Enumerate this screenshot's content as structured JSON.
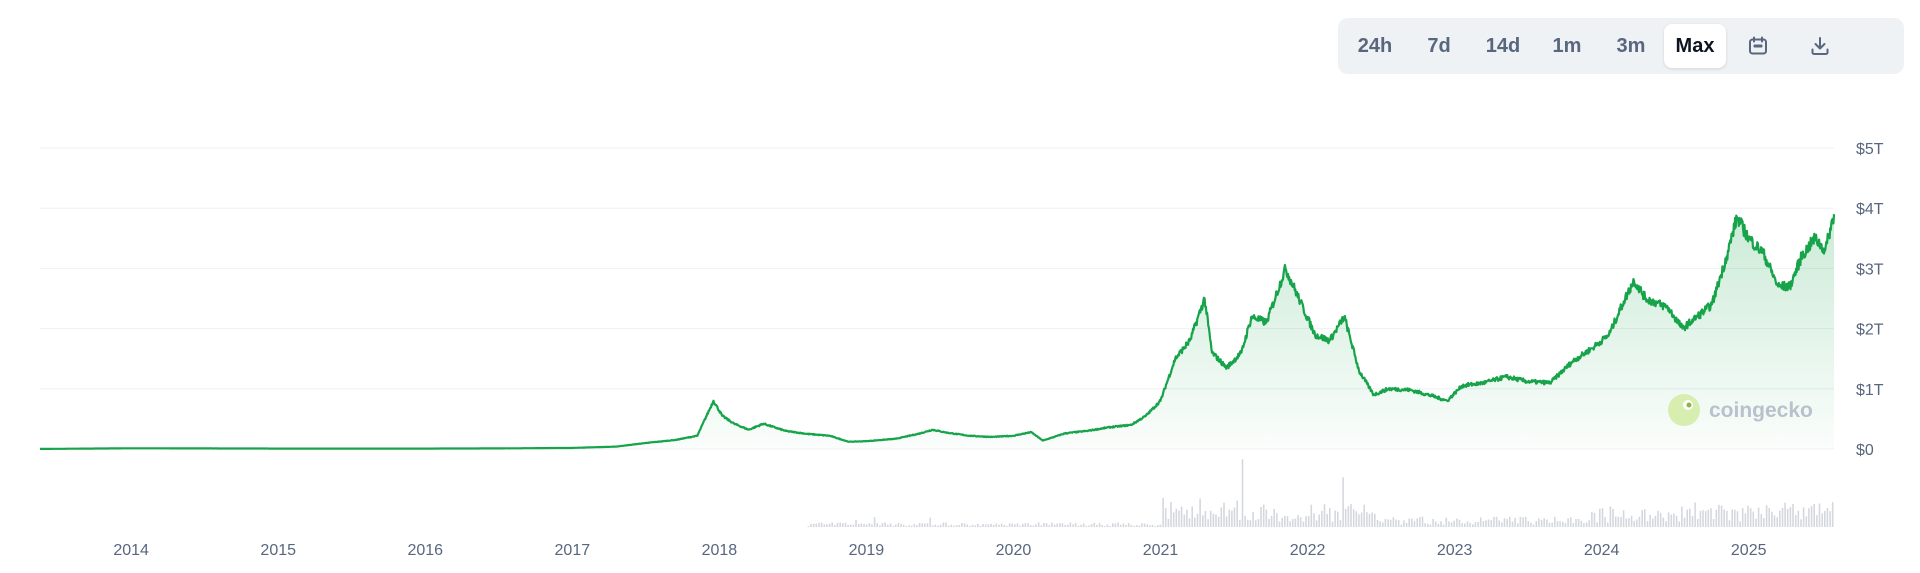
{
  "toolbar": {
    "ranges": [
      "24h",
      "7d",
      "14d",
      "1m",
      "3m",
      "Max"
    ],
    "active": "Max",
    "icons": [
      "calendar-icon",
      "download-icon"
    ]
  },
  "watermark": {
    "text": "coingecko",
    "icon": "gecko-logo-icon"
  },
  "colors": {
    "line": "#16a34a",
    "fill_top": "#16a34a",
    "grid": "#eef0f3",
    "volume": "#d4d8de",
    "text": "#58667e"
  },
  "chart_data": {
    "type": "area",
    "title": "",
    "xlabel": "",
    "ylabel": "",
    "ylim": [
      0,
      5
    ],
    "y_unit": "trillion USD",
    "y_ticks": [
      0,
      1,
      2,
      3,
      4,
      5
    ],
    "y_tick_labels": [
      "$0",
      "$1T",
      "$2T",
      "$3T",
      "$4T",
      "$5T"
    ],
    "x_range": [
      2013.38,
      2025.58
    ],
    "x_tick_labels": [
      "2014",
      "2015",
      "2016",
      "2017",
      "2018",
      "2019",
      "2020",
      "2021",
      "2022",
      "2023",
      "2024",
      "2025"
    ],
    "grid": true,
    "legend": "none",
    "series": [
      {
        "x": [
          2013.38,
          2014.0,
          2015.0,
          2016.0,
          2016.5,
          2017.0,
          2017.3,
          2017.5,
          2017.7,
          2017.85,
          2017.96,
          2018.02,
          2018.1,
          2018.2,
          2018.3,
          2018.45,
          2018.6,
          2018.75,
          2018.88,
          2019.0,
          2019.2,
          2019.35,
          2019.45,
          2019.55,
          2019.7,
          2019.85,
          2020.0,
          2020.12,
          2020.2,
          2020.35,
          2020.5,
          2020.65,
          2020.8,
          2020.9,
          2021.0,
          2021.1,
          2021.2,
          2021.3,
          2021.35,
          2021.45,
          2021.55,
          2021.62,
          2021.72,
          2021.85,
          2021.95,
          2022.05,
          2022.15,
          2022.25,
          2022.35,
          2022.45,
          2022.55,
          2022.7,
          2022.85,
          2022.95,
          2023.05,
          2023.2,
          2023.35,
          2023.5,
          2023.65,
          2023.8,
          2023.95,
          2024.05,
          2024.15,
          2024.22,
          2024.3,
          2024.45,
          2024.55,
          2024.65,
          2024.75,
          2024.85,
          2024.92,
          2025.0,
          2025.1,
          2025.2,
          2025.28,
          2025.36,
          2025.45,
          2025.52,
          2025.58
        ],
        "y": [
          0.001,
          0.012,
          0.007,
          0.007,
          0.01,
          0.018,
          0.04,
          0.1,
          0.15,
          0.22,
          0.8,
          0.55,
          0.42,
          0.32,
          0.42,
          0.3,
          0.25,
          0.22,
          0.12,
          0.13,
          0.17,
          0.25,
          0.32,
          0.27,
          0.22,
          0.2,
          0.22,
          0.28,
          0.14,
          0.26,
          0.3,
          0.36,
          0.4,
          0.55,
          0.8,
          1.5,
          1.8,
          2.5,
          1.6,
          1.35,
          1.6,
          2.2,
          2.1,
          3.0,
          2.45,
          1.9,
          1.8,
          2.2,
          1.3,
          0.9,
          1.0,
          0.98,
          0.88,
          0.8,
          1.05,
          1.1,
          1.2,
          1.12,
          1.1,
          1.45,
          1.7,
          1.9,
          2.45,
          2.8,
          2.5,
          2.35,
          2.0,
          2.2,
          2.4,
          3.2,
          3.85,
          3.5,
          3.25,
          2.7,
          2.7,
          3.2,
          3.5,
          3.3,
          3.9
        ]
      }
    ],
    "volume_note": "relative trading volume bars, unlabeled"
  }
}
